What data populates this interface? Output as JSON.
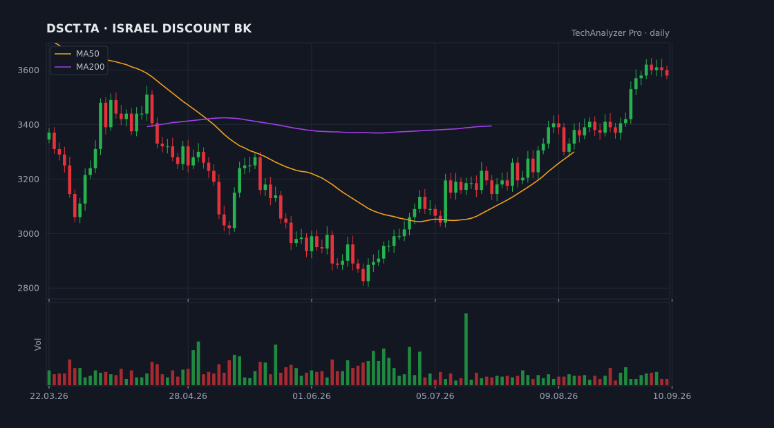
{
  "header": {
    "title": "DSCT.TA  ·  ISRAEL DISCOUNT BK",
    "subtitle": "TechAnalyzer Pro · daily"
  },
  "colors": {
    "background": "#131722",
    "up": "#26b24f",
    "down": "#e5323b",
    "ma50": "#f0a020",
    "ma200": "#a040e8",
    "grid": "#232838"
  },
  "chart_data": {
    "type": "candlestick",
    "price_ylim": [
      2760,
      3700
    ],
    "price_ticks": [
      2800,
      3000,
      3200,
      3400,
      3600
    ],
    "x_ticks": [
      {
        "label": "22.03.26",
        "index": 0
      },
      {
        "label": "28.04.26",
        "index": 27
      },
      {
        "label": "01.06.26",
        "index": 51
      },
      {
        "label": "05.07.26",
        "index": 75
      },
      {
        "label": "09.08.26",
        "index": 99
      },
      {
        "label": "10.09.26",
        "index": 121
      }
    ],
    "volume_ylabel": "Vol",
    "legend": [
      {
        "name": "MA50",
        "color": "#f0a020"
      },
      {
        "name": "MA200",
        "color": "#a040e8"
      }
    ],
    "grid": true,
    "legend_position": "top-left",
    "close": [
      3370,
      3310,
      3290,
      3250,
      3145,
      3060,
      3110,
      3215,
      3240,
      3310,
      3480,
      3390,
      3490,
      3440,
      3420,
      3440,
      3375,
      3440,
      3440,
      3510,
      3405,
      3330,
      3320,
      3320,
      3280,
      3255,
      3320,
      3250,
      3280,
      3300,
      3260,
      3230,
      3190,
      3070,
      3030,
      3020,
      3150,
      3240,
      3250,
      3250,
      3280,
      3160,
      3180,
      3130,
      3140,
      3055,
      3040,
      2965,
      2980,
      2985,
      2935,
      2990,
      2950,
      2945,
      2995,
      2890,
      2885,
      2900,
      2960,
      2890,
      2870,
      2825,
      2885,
      2895,
      2908,
      2955,
      2955,
      2990,
      2990,
      3015,
      3060,
      3090,
      3135,
      3090,
      3090,
      3065,
      3040,
      3195,
      3150,
      3190,
      3160,
      3185,
      3185,
      3160,
      3230,
      3195,
      3145,
      3180,
      3195,
      3175,
      3260,
      3195,
      3205,
      3275,
      3225,
      3305,
      3330,
      3390,
      3405,
      3390,
      3300,
      3330,
      3380,
      3360,
      3390,
      3410,
      3380,
      3370,
      3410,
      3390,
      3370,
      3405,
      3420,
      3530,
      3570,
      3580,
      3620,
      3600,
      3610,
      3600,
      3580
    ],
    "ma50": [
      3715,
      3702,
      3690,
      3680,
      3672,
      3666,
      3660,
      3655,
      3650,
      3646,
      3642,
      3638,
      3634,
      3630,
      3625,
      3620,
      3612,
      3606,
      3598,
      3588,
      3575,
      3560,
      3545,
      3530,
      3515,
      3500,
      3485,
      3472,
      3458,
      3444,
      3430,
      3415,
      3400,
      3382,
      3364,
      3348,
      3335,
      3322,
      3314,
      3304,
      3298,
      3290,
      3282,
      3272,
      3262,
      3253,
      3245,
      3238,
      3232,
      3228,
      3226,
      3220,
      3212,
      3204,
      3192,
      3180,
      3166,
      3152,
      3140,
      3128,
      3116,
      3104,
      3092,
      3083,
      3076,
      3070,
      3066,
      3062,
      3057,
      3053,
      3049,
      3045,
      3043,
      3046,
      3050,
      3053,
      3052,
      3050,
      3048,
      3048,
      3050,
      3052,
      3056,
      3063,
      3073,
      3083,
      3093,
      3103,
      3113,
      3123,
      3134,
      3146,
      3158,
      3170,
      3183,
      3196,
      3211,
      3228,
      3243,
      3258,
      3272,
      3286,
      3300
    ],
    "ma200": [
      3392,
      3395,
      3398,
      3401,
      3404,
      3407,
      3409,
      3411,
      3413,
      3415,
      3417,
      3419,
      3421,
      3423,
      3424,
      3425,
      3424,
      3423,
      3421,
      3418,
      3415,
      3412,
      3409,
      3406,
      3403,
      3400,
      3397,
      3393,
      3389,
      3386,
      3383,
      3380,
      3378,
      3376,
      3375,
      3374,
      3373,
      3373,
      3372,
      3371,
      3370,
      3370,
      3371,
      3370,
      3369,
      3369,
      3369,
      3371,
      3372,
      3373,
      3374,
      3375,
      3376,
      3377,
      3378,
      3379,
      3380,
      3381,
      3382,
      3383,
      3384,
      3386,
      3388,
      3390,
      3392,
      3393,
      3394,
      3395
    ],
    "ma50_start_index": 0,
    "ma200_start_index": 19,
    "volume": [
      19,
      14,
      15,
      15,
      33,
      22,
      22,
      10,
      12,
      19,
      16,
      17,
      14,
      13,
      21,
      8,
      19,
      10,
      10,
      15,
      30,
      27,
      14,
      10,
      19,
      11,
      20,
      21,
      45,
      56,
      14,
      17,
      15,
      27,
      16,
      32,
      39,
      37,
      10,
      9,
      18,
      30,
      29,
      14,
      52,
      16,
      23,
      26,
      22,
      12,
      16,
      19,
      17,
      18,
      10,
      33,
      18,
      18,
      32,
      22,
      25,
      29,
      31,
      44,
      31,
      47,
      35,
      22,
      12,
      14,
      49,
      13,
      43,
      10,
      15,
      7,
      17,
      8,
      15,
      6,
      9,
      92,
      7,
      16,
      9,
      11,
      10,
      12,
      11,
      12,
      10,
      12,
      19,
      13,
      8,
      13,
      9,
      14,
      8,
      11,
      11,
      14,
      12,
      12,
      13,
      7,
      12,
      8,
      12,
      22,
      6,
      16,
      23,
      8,
      8,
      13,
      15,
      16,
      17,
      8,
      8
    ]
  }
}
